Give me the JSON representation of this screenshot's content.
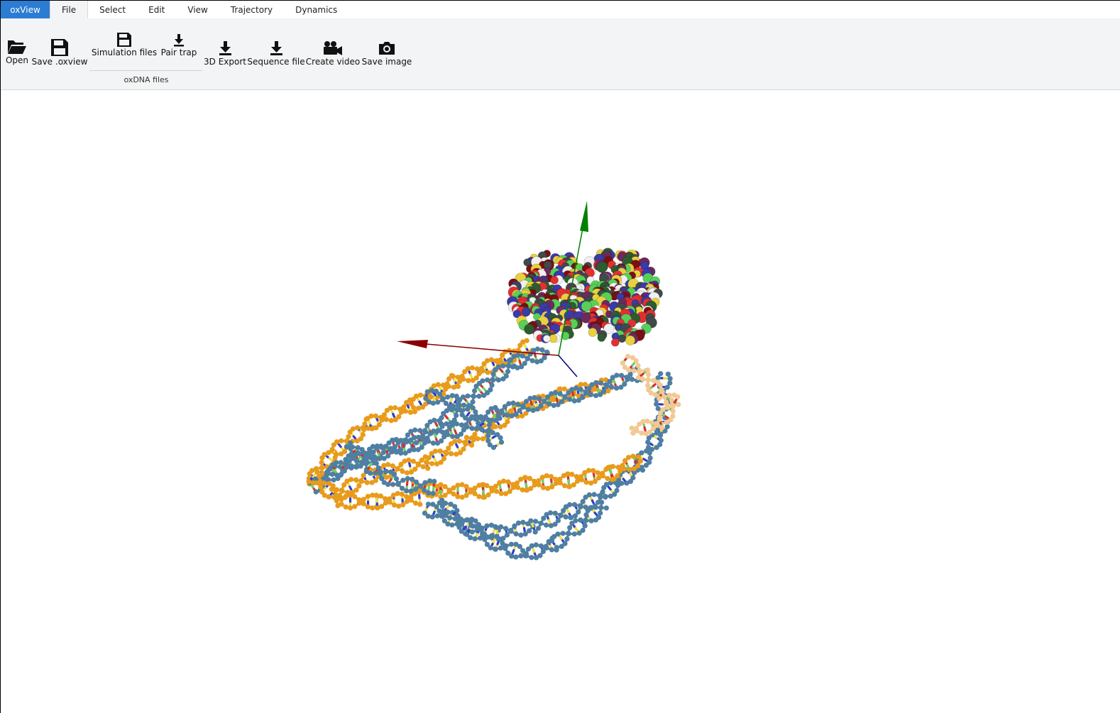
{
  "app_tab": "oxView",
  "tabs": [
    {
      "label": "File",
      "active": true
    },
    {
      "label": "Select"
    },
    {
      "label": "Edit"
    },
    {
      "label": "View"
    },
    {
      "label": "Trajectory"
    },
    {
      "label": "Dynamics"
    }
  ],
  "ribbon": {
    "open": "Open",
    "save_oxview": "Save .oxview",
    "simulation_files": "Simulation files",
    "pair_trap": "Pair trap",
    "group_oxdna": "oxDNA files",
    "export_3d": "3D Export",
    "sequence_file": "Sequence file",
    "create_video": "Create video",
    "save_image": "Save image"
  },
  "scene": {
    "background": "#ffffff",
    "axis_colors": {
      "x": "#8b0000",
      "y": "#008000",
      "z": "#00008b"
    },
    "strand_colors": [
      "#e89b1c",
      "#4f7fa3",
      "#f2c994"
    ],
    "base_colors": [
      "#2d3bd9",
      "#d92d2d",
      "#f0e040",
      "#6ad06a"
    ],
    "protein_colors": [
      "#e23030",
      "#3a3aa8",
      "#2f5c2f",
      "#f0f0f0",
      "#6b2a5e",
      "#3f4a4a",
      "#e8d040",
      "#7a1010",
      "#58d058"
    ]
  }
}
